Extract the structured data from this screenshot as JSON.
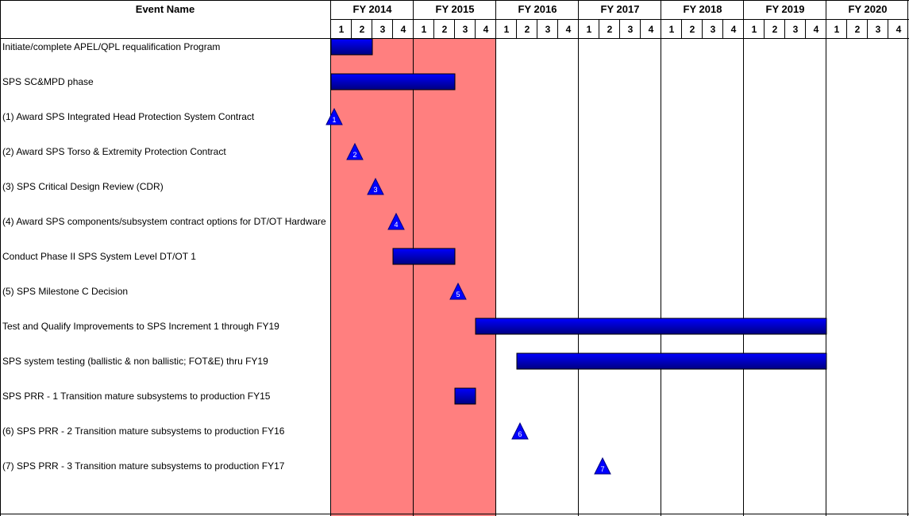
{
  "chart_data": {
    "type": "gantt",
    "header_label": "Event Name",
    "fiscal_years": [
      "FY 2014",
      "FY 2015",
      "FY 2016",
      "FY 2017",
      "FY 2018",
      "FY 2019",
      "FY 2020"
    ],
    "quarter_labels": [
      "1",
      "2",
      "3",
      "4"
    ],
    "highlight_years": [
      "FY 2014",
      "FY 2015"
    ],
    "colors": {
      "highlight": "#ff7f7f",
      "bar_top": "#0000ff",
      "bar_bottom": "#000080",
      "milestone": "#0000ff",
      "grid": "#000000"
    },
    "events": [
      {
        "label": "Initiate/complete APEL/QPL requalification Program",
        "kind": "bar",
        "start": "FY2014 Q1",
        "end": "FY2014 Q2"
      },
      {
        "label": "SPS SC&MPD phase",
        "kind": "bar",
        "start": "FY2014 Q1",
        "end": "FY2015 Q2"
      },
      {
        "label": "(1) Award SPS Integrated Head Protection System Contract",
        "kind": "milestone",
        "milestone": "1",
        "date": "FY2014 Q1"
      },
      {
        "label": "(2) Award SPS Torso & Extremity  Protection Contract",
        "kind": "milestone",
        "milestone": "2",
        "date": "FY2014 Q2"
      },
      {
        "label": "(3) SPS Critical Design Review (CDR)",
        "kind": "milestone",
        "milestone": "3",
        "date": "FY2014 Q3"
      },
      {
        "label": "(4) Award SPS components/subsystem contract options for DT/OT Hardware",
        "kind": "milestone",
        "milestone": "4",
        "date": "FY2014 Q4"
      },
      {
        "label": "Conduct Phase II SPS System Level DT/OT 1",
        "kind": "bar",
        "start": "FY2014 Q4",
        "end": "FY2015 Q2"
      },
      {
        "label": "(5) SPS Milestone C Decision",
        "kind": "milestone",
        "milestone": "5",
        "date": "FY2015 Q3"
      },
      {
        "label": "Test and Qualify Improvements to SPS Increment 1 through FY19",
        "kind": "bar",
        "start": "FY2015 Q4",
        "end": "FY2019 Q4"
      },
      {
        "label": "SPS system testing (ballistic & non ballistic; FOT&E)  thru FY19",
        "kind": "bar",
        "start": "FY2016 Q2",
        "end": "FY2019 Q4"
      },
      {
        "label": "SPS PRR - 1 Transition mature subsystems to production FY15",
        "kind": "bar",
        "start": "FY2015 Q3",
        "end": "FY2015 Q3"
      },
      {
        "label": "(6) SPS PRR - 2 Transition mature subsystems to production FY16",
        "kind": "milestone",
        "milestone": "6",
        "date": "FY2016 Q2"
      },
      {
        "label": "(7) SPS PRR - 3 Transition mature subsystems to production FY17",
        "kind": "milestone",
        "milestone": "7",
        "date": "FY2017 Q2"
      }
    ]
  }
}
